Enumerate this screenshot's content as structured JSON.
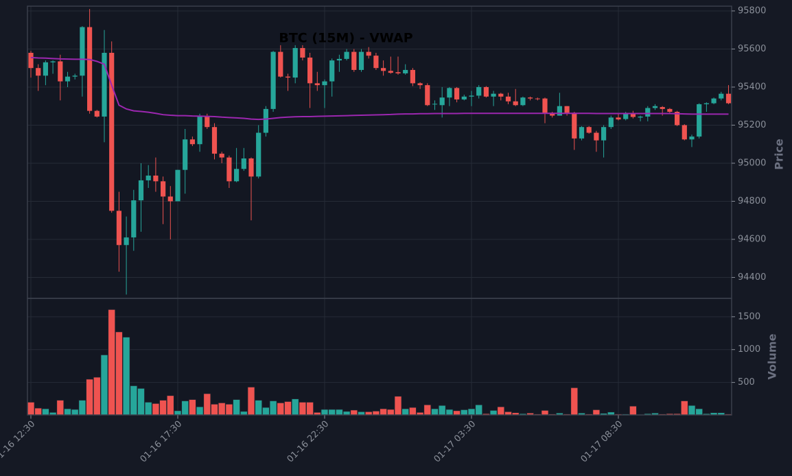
{
  "chart_data": {
    "type": "candlestick",
    "title": "BTC (15M) - VWAP",
    "ylabel": "Price",
    "volume_ylabel": "Volume",
    "categories": [
      "01-16 12:30",
      null,
      null,
      null,
      null,
      null,
      null,
      null,
      null,
      null,
      null,
      null,
      null,
      null,
      null,
      null,
      null,
      null,
      null,
      null,
      "01-16 17:30",
      null,
      null,
      null,
      null,
      null,
      null,
      null,
      null,
      null,
      null,
      null,
      null,
      null,
      null,
      null,
      null,
      null,
      null,
      null,
      "01-16 22:30",
      null,
      null,
      null,
      null,
      null,
      null,
      null,
      null,
      null,
      null,
      null,
      null,
      null,
      null,
      null,
      null,
      null,
      null,
      null,
      "01-17 03:30",
      null,
      null,
      null,
      null,
      null,
      null,
      null,
      null,
      null,
      null,
      null,
      null,
      null,
      null,
      null,
      null,
      null,
      null,
      null,
      "01-17 08:30",
      null,
      null,
      null,
      null,
      null,
      null,
      null,
      null,
      null,
      null,
      null,
      null,
      null,
      null,
      null
    ],
    "open": [
      95580,
      95500,
      95460,
      95530,
      95535,
      95430,
      95455,
      95460,
      95715,
      95275,
      95245,
      95580,
      94750,
      94570,
      94610,
      94805,
      94910,
      94935,
      94905,
      94825,
      94800,
      94965,
      95125,
      95100,
      95245,
      95190,
      95050,
      95030,
      94905,
      94970,
      95025,
      94930,
      95160,
      95285,
      95585,
      95455,
      95450,
      95605,
      95555,
      95420,
      95410,
      95430,
      95540,
      95548,
      95585,
      95490,
      95585,
      95565,
      95500,
      95485,
      95478,
      95472,
      95490,
      95420,
      95410,
      95310,
      95305,
      95345,
      95395,
      95335,
      95350,
      95355,
      95400,
      95350,
      95365,
      95350,
      95325,
      95305,
      95345,
      95340,
      95340,
      95265,
      95250,
      95300,
      95265,
      95130,
      95190,
      95160,
      95120,
      95190,
      95240,
      95232,
      95260,
      95240,
      95245,
      95290,
      95295,
      95285,
      95270,
      95200,
      95125,
      95140,
      95310,
      95315,
      95340,
      95365
    ],
    "high": [
      95590,
      95520,
      95540,
      95540,
      95570,
      95480,
      95470,
      95720,
      95810,
      95280,
      95700,
      95640,
      94850,
      94720,
      94860,
      95000,
      94990,
      95030,
      94930,
      94880,
      94965,
      95180,
      95140,
      95260,
      95260,
      95210,
      95060,
      95040,
      95080,
      95080,
      95030,
      95200,
      95300,
      95590,
      95620,
      95470,
      95620,
      95620,
      95580,
      95480,
      95440,
      95550,
      95570,
      95600,
      95600,
      95600,
      95610,
      95580,
      95540,
      95560,
      95560,
      95520,
      95500,
      95425,
      95420,
      95330,
      95400,
      95400,
      95400,
      95360,
      95380,
      95410,
      95405,
      95380,
      95370,
      95370,
      95390,
      95350,
      95350,
      95345,
      95345,
      95270,
      95370,
      95300,
      95270,
      95195,
      95195,
      95170,
      95200,
      95250,
      95260,
      95270,
      95275,
      95250,
      95300,
      95310,
      95300,
      95290,
      95275,
      95205,
      95150,
      95315,
      95320,
      95345,
      95375,
      95410
    ],
    "low": [
      95450,
      95380,
      95410,
      95470,
      95330,
      95400,
      95440,
      95350,
      95260,
      95240,
      95110,
      94740,
      94430,
      94310,
      94540,
      94640,
      94870,
      94850,
      94680,
      94600,
      94800,
      94840,
      95090,
      95060,
      95180,
      95020,
      95000,
      94870,
      94900,
      94960,
      94700,
      94920,
      95140,
      95270,
      95450,
      95380,
      95420,
      95540,
      95290,
      95380,
      95290,
      95350,
      95480,
      95540,
      95480,
      95480,
      95550,
      95490,
      95460,
      95470,
      95465,
      95465,
      95405,
      95390,
      95300,
      95280,
      95240,
      95300,
      95320,
      95330,
      95300,
      95340,
      95345,
      95300,
      95330,
      95310,
      95300,
      95300,
      95330,
      95330,
      95210,
      95240,
      95250,
      95250,
      95070,
      95120,
      95155,
      95060,
      95030,
      95180,
      95225,
      95225,
      95235,
      95220,
      95220,
      95280,
      95250,
      95260,
      95195,
      95120,
      95085,
      95130,
      95270,
      95310,
      95330,
      95310
    ],
    "close": [
      95500,
      95460,
      95530,
      95535,
      95430,
      95455,
      95460,
      95715,
      95275,
      95245,
      95580,
      94750,
      94570,
      94610,
      94805,
      94910,
      94935,
      94905,
      94825,
      94800,
      94965,
      95125,
      95100,
      95245,
      95190,
      95050,
      95030,
      94905,
      94970,
      95025,
      94930,
      95160,
      95285,
      95585,
      95455,
      95450,
      95605,
      95555,
      95420,
      95410,
      95430,
      95540,
      95548,
      95585,
      95490,
      95585,
      95565,
      95500,
      95485,
      95475,
      95472,
      95490,
      95420,
      95410,
      95305,
      95312,
      95345,
      95395,
      95335,
      95350,
      95355,
      95400,
      95350,
      95365,
      95350,
      95325,
      95305,
      95345,
      95340,
      95338,
      95265,
      95250,
      95300,
      95265,
      95130,
      95190,
      95160,
      95120,
      95190,
      95240,
      95230,
      95260,
      95243,
      95245,
      95290,
      95300,
      95285,
      95270,
      95200,
      95125,
      95140,
      95310,
      95315,
      95340,
      95365,
      95315
    ],
    "vwap": [
      95555,
      95553,
      95552,
      95550,
      95548,
      95547,
      95546,
      95546,
      95545,
      95535,
      95520,
      95410,
      95305,
      95285,
      95275,
      95272,
      95268,
      95262,
      95255,
      95252,
      95250,
      95250,
      95248,
      95247,
      95246,
      95245,
      95242,
      95240,
      95238,
      95236,
      95232,
      95230,
      95232,
      95236,
      95240,
      95242,
      95244,
      95245,
      95245,
      95246,
      95247,
      95248,
      95249,
      95250,
      95251,
      95252,
      95253,
      95254,
      95255,
      95256,
      95258,
      95259,
      95259,
      95260,
      95260,
      95261,
      95261,
      95261,
      95261,
      95262,
      95262,
      95262,
      95262,
      95262,
      95262,
      95262,
      95262,
      95262,
      95262,
      95262,
      95262,
      95262,
      95262,
      95262,
      95262,
      95262,
      95262,
      95261,
      95261,
      95261,
      95261,
      95261,
      95261,
      95261,
      95261,
      95261,
      95261,
      95261,
      95260,
      95259,
      95258,
      95258,
      95258,
      95258,
      95258,
      95258
    ],
    "volume": [
      200,
      110,
      100,
      45,
      230,
      100,
      90,
      230,
      550,
      580,
      920,
      1610,
      1270,
      1190,
      450,
      410,
      200,
      180,
      230,
      300,
      70,
      220,
      240,
      130,
      330,
      170,
      190,
      170,
      240,
      60,
      430,
      230,
      120,
      220,
      190,
      210,
      250,
      200,
      200,
      45,
      90,
      90,
      90,
      60,
      80,
      55,
      55,
      65,
      100,
      90,
      290,
      100,
      120,
      45,
      160,
      100,
      150,
      90,
      70,
      85,
      100,
      160,
      25,
      75,
      130,
      55,
      40,
      25,
      35,
      20,
      75,
      20,
      35,
      20,
      420,
      35,
      20,
      85,
      30,
      50,
      20,
      20,
      140,
      15,
      25,
      35,
      20,
      25,
      25,
      220,
      150,
      100,
      25,
      40,
      40,
      20
    ],
    "up_color": "#26a69a",
    "down_color": "#ef5350",
    "vwap_color": "#9c27b0",
    "ylim": [
      94290,
      95825
    ],
    "yticks": [
      94400,
      94600,
      94800,
      95000,
      95200,
      95400,
      95600,
      95800
    ],
    "volume_ylim": [
      0,
      1780
    ],
    "volume_yticks": [
      500,
      1000,
      1500
    ],
    "grid": true
  }
}
